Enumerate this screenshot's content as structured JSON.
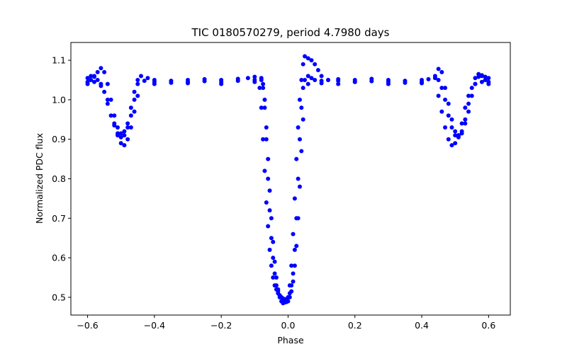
{
  "chart_data": {
    "type": "scatter",
    "title": "TIC 0180570279, period 4.7980 days",
    "xlabel": "Phase",
    "ylabel": "Normalized PDC flux",
    "xlim": [
      -0.65,
      0.665
    ],
    "ylim": [
      0.455,
      1.145
    ],
    "xticks": [
      -0.6,
      -0.4,
      -0.2,
      0.0,
      0.2,
      0.4,
      0.6
    ],
    "xtick_labels": [
      "−0.6",
      "−0.4",
      "−0.2",
      "0.0",
      "0.2",
      "0.4",
      "0.6"
    ],
    "yticks": [
      0.5,
      0.6,
      0.7,
      0.8,
      0.9,
      1.0,
      1.1
    ],
    "ytick_labels": [
      "0.5",
      "0.6",
      "0.7",
      "0.8",
      "0.9",
      "1.0",
      "1.1"
    ],
    "grid": false,
    "legend": "none",
    "marker_color": "#0000ff",
    "series": [
      {
        "x": [
          -0.6,
          -0.59,
          -0.58,
          -0.57,
          -0.56,
          -0.55,
          -0.54,
          -0.53,
          -0.52,
          -0.51,
          -0.5,
          -0.49,
          -0.48,
          -0.47,
          -0.46,
          -0.45,
          -0.44,
          -0.42,
          -0.4,
          -0.35,
          -0.3,
          -0.25,
          -0.2,
          -0.15,
          -0.12,
          -0.1,
          -0.08,
          -0.075,
          -0.07,
          -0.065,
          -0.06,
          -0.055,
          -0.05,
          -0.045,
          -0.04,
          -0.035,
          -0.03,
          -0.025,
          -0.02,
          -0.015,
          -0.01,
          -0.005,
          0.0,
          0.005,
          0.01,
          0.015,
          0.02,
          0.025,
          0.03,
          0.035,
          0.04,
          0.045,
          0.05,
          0.06,
          0.07,
          0.08,
          0.1,
          0.12,
          0.15,
          0.2,
          0.25,
          0.3,
          0.35,
          0.4,
          0.42,
          0.44,
          0.45,
          0.46,
          0.47,
          0.48,
          0.49,
          0.5,
          0.51,
          0.52,
          0.53,
          0.54,
          0.55,
          0.56,
          0.57,
          0.58,
          0.59,
          0.6
        ],
        "y": [
          1.055,
          1.06,
          1.058,
          1.05,
          1.04,
          1.02,
          0.99,
          0.96,
          0.935,
          0.915,
          0.905,
          0.91,
          0.93,
          0.96,
          1.0,
          1.04,
          1.06,
          1.055,
          1.05,
          1.048,
          1.05,
          1.052,
          1.05,
          1.053,
          1.055,
          1.058,
          1.055,
          1.03,
          0.98,
          0.9,
          0.8,
          0.72,
          0.65,
          0.6,
          0.56,
          0.53,
          0.515,
          0.505,
          0.5,
          0.497,
          0.495,
          0.495,
          0.5,
          0.51,
          0.53,
          0.56,
          0.62,
          0.7,
          0.8,
          0.9,
          0.98,
          1.03,
          1.05,
          1.06,
          1.055,
          1.05,
          1.048,
          1.05,
          1.052,
          1.05,
          1.053,
          1.05,
          1.048,
          1.05,
          1.052,
          1.055,
          1.05,
          1.03,
          1.0,
          0.96,
          0.93,
          0.91,
          0.905,
          0.915,
          0.94,
          0.97,
          1.01,
          1.04,
          1.058,
          1.062,
          1.058,
          1.055
        ]
      },
      {
        "x": [
          -0.6,
          -0.59,
          -0.58,
          -0.57,
          -0.56,
          -0.55,
          -0.54,
          -0.53,
          -0.52,
          -0.51,
          -0.5,
          -0.49,
          -0.48,
          -0.47,
          -0.46,
          -0.45,
          -0.43,
          -0.4,
          -0.35,
          -0.3,
          -0.25,
          -0.2,
          -0.15,
          -0.1,
          -0.08,
          -0.075,
          -0.07,
          -0.065,
          -0.06,
          -0.055,
          -0.05,
          -0.045,
          -0.04,
          -0.035,
          -0.03,
          -0.025,
          -0.02,
          -0.015,
          -0.01,
          -0.005,
          0.0,
          0.005,
          0.01,
          0.015,
          0.02,
          0.025,
          0.03,
          0.035,
          0.04,
          0.045,
          0.05,
          0.06,
          0.07,
          0.08,
          0.09,
          0.1,
          0.12,
          0.15,
          0.2,
          0.25,
          0.3,
          0.35,
          0.4,
          0.44,
          0.45,
          0.46,
          0.47,
          0.48,
          0.49,
          0.5,
          0.51,
          0.52,
          0.53,
          0.54,
          0.55,
          0.56,
          0.57,
          0.58,
          0.59,
          0.6
        ],
        "y": [
          1.045,
          1.05,
          1.06,
          1.07,
          1.08,
          1.07,
          1.04,
          1.0,
          0.96,
          0.93,
          0.915,
          0.92,
          0.94,
          0.98,
          1.02,
          1.05,
          1.048,
          1.045,
          1.043,
          1.045,
          1.047,
          1.045,
          1.048,
          1.05,
          1.05,
          1.04,
          1.0,
          0.93,
          0.85,
          0.77,
          0.7,
          0.64,
          0.59,
          0.55,
          0.52,
          0.5,
          0.49,
          0.485,
          0.487,
          0.49,
          0.5,
          0.53,
          0.58,
          0.66,
          0.75,
          0.85,
          0.93,
          1.0,
          1.05,
          1.09,
          1.11,
          1.105,
          1.1,
          1.09,
          1.075,
          1.06,
          1.05,
          1.048,
          1.045,
          1.047,
          1.045,
          1.043,
          1.045,
          1.06,
          1.078,
          1.07,
          1.03,
          0.99,
          0.95,
          0.92,
          0.91,
          0.92,
          0.95,
          0.99,
          1.03,
          1.055,
          1.065,
          1.06,
          1.05,
          1.045
        ]
      },
      {
        "x": [
          -0.6,
          -0.58,
          -0.56,
          -0.54,
          -0.52,
          -0.51,
          -0.5,
          -0.49,
          -0.48,
          -0.47,
          -0.46,
          -0.45,
          -0.4,
          -0.3,
          -0.2,
          -0.1,
          -0.085,
          -0.08,
          -0.075,
          -0.07,
          -0.065,
          -0.06,
          -0.055,
          -0.05,
          -0.045,
          -0.04,
          -0.035,
          -0.03,
          -0.025,
          -0.02,
          -0.015,
          -0.01,
          -0.005,
          0.0,
          0.005,
          0.01,
          0.015,
          0.02,
          0.025,
          0.03,
          0.035,
          0.04,
          0.045,
          0.06,
          0.1,
          0.15,
          0.2,
          0.3,
          0.4,
          0.45,
          0.46,
          0.47,
          0.48,
          0.49,
          0.5,
          0.51,
          0.52,
          0.53,
          0.54,
          0.56,
          0.58,
          0.6
        ],
        "y": [
          1.04,
          1.045,
          1.035,
          1.0,
          0.94,
          0.91,
          0.89,
          0.885,
          0.9,
          0.93,
          0.97,
          1.01,
          1.04,
          1.042,
          1.04,
          1.045,
          1.03,
          0.98,
          0.9,
          0.82,
          0.74,
          0.68,
          0.62,
          0.58,
          0.55,
          0.53,
          0.52,
          0.51,
          0.505,
          0.5,
          0.495,
          0.49,
          0.488,
          0.49,
          0.5,
          0.515,
          0.54,
          0.58,
          0.63,
          0.7,
          0.78,
          0.87,
          0.95,
          1.04,
          1.042,
          1.04,
          1.045,
          1.04,
          1.042,
          1.01,
          0.97,
          0.93,
          0.9,
          0.885,
          0.89,
          0.91,
          0.94,
          0.98,
          1.01,
          1.04,
          1.045,
          1.04
        ]
      }
    ]
  }
}
